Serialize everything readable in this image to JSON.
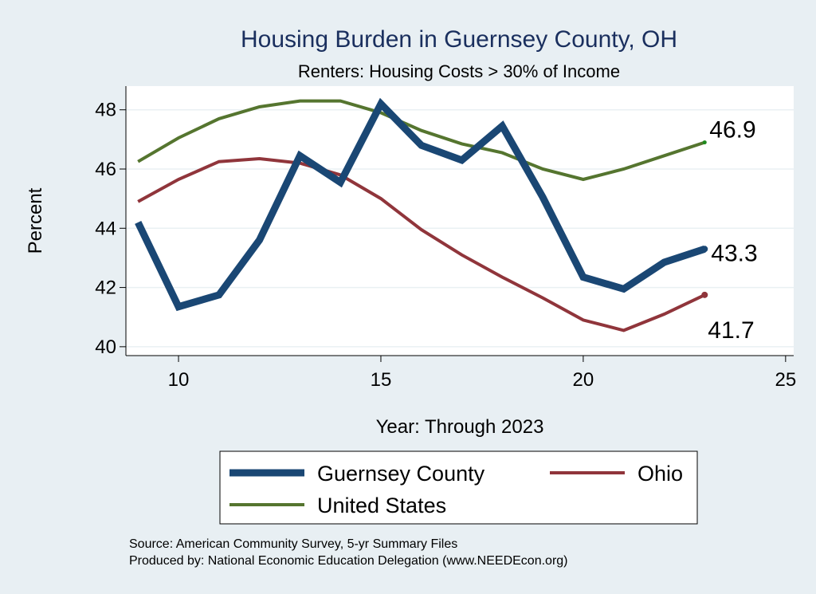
{
  "chart_data": {
    "type": "line",
    "title": "Housing Burden in Guernsey County, OH",
    "subtitle": "Renters: Housing Costs > 30% of Income",
    "xlabel": "Year: Through 2023",
    "ylabel": "Percent",
    "xlim": [
      8.7,
      25.2
    ],
    "ylim": [
      39.7,
      48.8
    ],
    "xticks": [
      10,
      15,
      20,
      25
    ],
    "yticks": [
      40,
      42,
      44,
      46,
      48
    ],
    "grid": true,
    "x": [
      9,
      10,
      11,
      12,
      13,
      14,
      15,
      16,
      17,
      18,
      19,
      20,
      21,
      22,
      23
    ],
    "series": [
      {
        "name": "Guernsey County",
        "color": "#1a4774",
        "values": [
          44.2,
          41.35,
          41.75,
          43.6,
          46.45,
          45.55,
          48.2,
          46.8,
          46.3,
          47.45,
          45.05,
          42.35,
          41.95,
          42.85,
          43.3
        ],
        "end_label": "43.3"
      },
      {
        "name": "Ohio",
        "color": "#90353b",
        "values": [
          44.9,
          45.65,
          46.25,
          46.35,
          46.2,
          45.8,
          45.0,
          43.95,
          43.1,
          42.35,
          41.65,
          40.9,
          40.55,
          41.1,
          41.75
        ],
        "end_label": "41.7"
      },
      {
        "name": "United States",
        "color": "#55752f",
        "values": [
          46.25,
          47.05,
          47.7,
          48.1,
          48.3,
          48.3,
          47.9,
          47.3,
          46.85,
          46.55,
          46.0,
          45.65,
          46.0,
          46.45,
          46.9
        ],
        "end_label": "46.9"
      }
    ],
    "legend": {
      "position": "bottom",
      "entries": [
        "Guernsey County",
        "Ohio",
        "United States"
      ]
    },
    "notes": [
      "Source: American Community Survey, 5-yr Summary Files",
      "Produced by: National Economic Education Delegation (www.NEEDEcon.org)"
    ]
  }
}
